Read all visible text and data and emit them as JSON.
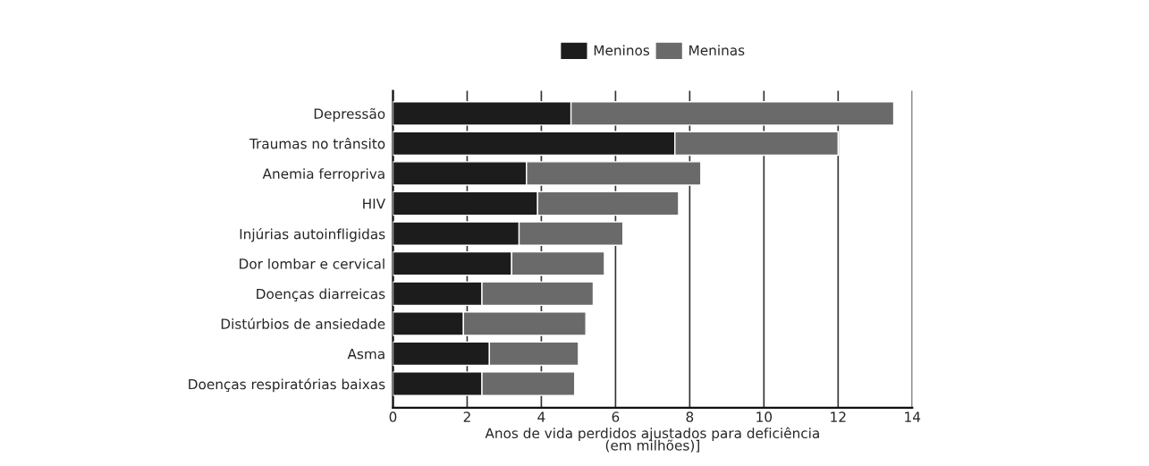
{
  "chart_data": {
    "type": "bar",
    "orientation": "horizontal",
    "stacked": true,
    "categories": [
      "Depressão",
      "Traumas no trânsito",
      "Anemia ferropriva",
      "HIV",
      "Injúrias autoinfligidas",
      "Dor lombar e cervical",
      "Doenças diarreicas",
      "Distúrbios de ansiedade",
      "Asma",
      "Doenças respiratórias baixas"
    ],
    "series": [
      {
        "name": "Meninos",
        "color": "#1c1c1c",
        "values": [
          4.8,
          7.6,
          3.6,
          3.9,
          3.4,
          3.2,
          2.4,
          1.9,
          2.6,
          2.4
        ]
      },
      {
        "name": "Meninas",
        "color": "#6a6a6a",
        "values": [
          8.7,
          4.4,
          4.7,
          3.8,
          2.8,
          2.5,
          3.0,
          3.3,
          2.4,
          2.5
        ]
      }
    ],
    "xlabel": "Anos de vida perdidos ajustados para deficiência\n(em milhões)]",
    "xlim": [
      0,
      14
    ],
    "xticks": [
      0,
      2,
      4,
      6,
      8,
      10,
      12,
      14
    ],
    "grid": "x",
    "legend": "top"
  }
}
